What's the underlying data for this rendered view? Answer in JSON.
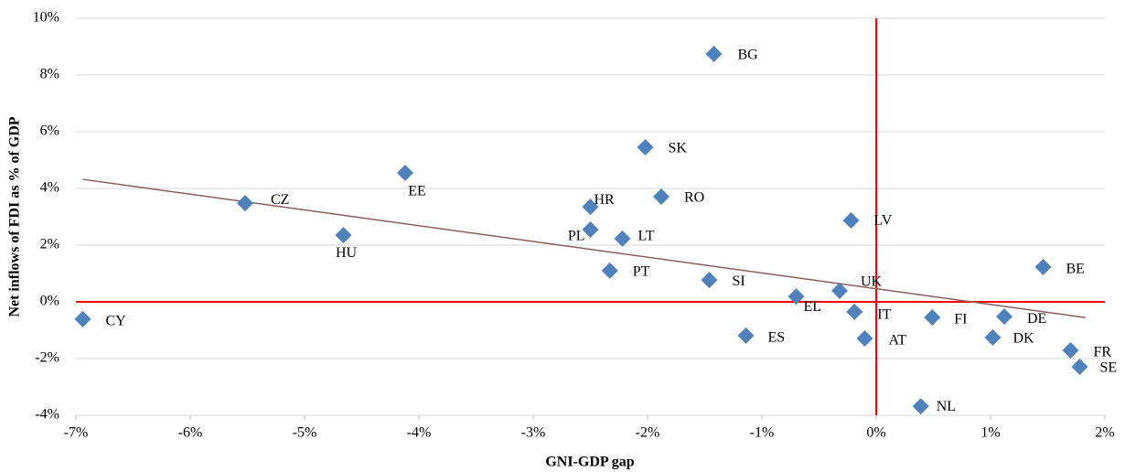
{
  "chart_data": {
    "type": "scatter",
    "x_label": "GNI-GDP gap",
    "y_label": "Net inflows of FDI as % of GDP",
    "point_labels": [
      "CY",
      "CZ",
      "HU",
      "EE",
      "HR",
      "PL",
      "LT",
      "PT",
      "SK",
      "RO",
      "BG",
      "SI",
      "ES",
      "EL",
      "UK",
      "IT",
      "AT",
      "LV",
      "NL",
      "FI",
      "DK",
      "DE",
      "BE",
      "FR",
      "SE"
    ],
    "x": [
      -6.94,
      -5.52,
      -4.66,
      -4.12,
      -2.5,
      -2.5,
      -2.22,
      -2.33,
      -2.02,
      -1.88,
      -1.42,
      -1.46,
      -1.14,
      -0.7,
      -0.32,
      -0.19,
      -0.1,
      -0.22,
      0.39,
      0.49,
      1.02,
      1.12,
      1.46,
      1.7,
      1.78
    ],
    "values": [
      -0.61,
      3.48,
      2.35,
      4.55,
      3.35,
      2.55,
      2.23,
      1.1,
      5.45,
      3.71,
      8.74,
      0.77,
      -1.19,
      0.19,
      0.39,
      -0.35,
      -1.29,
      2.87,
      -3.68,
      -0.55,
      -1.26,
      -0.52,
      1.23,
      -1.71,
      -2.29
    ],
    "color": "#4f81bd",
    "xlim": [
      -7,
      2
    ],
    "ylim": [
      -4,
      10
    ],
    "xticks": [
      {
        "value": -7,
        "label": "-7%"
      },
      {
        "value": -6,
        "label": "-6%"
      },
      {
        "value": -5,
        "label": "-5%"
      },
      {
        "value": -4,
        "label": "-4%"
      },
      {
        "value": -3,
        "label": "-3%"
      },
      {
        "value": -2,
        "label": "-2%"
      },
      {
        "value": -1,
        "label": "-1%"
      },
      {
        "value": 0,
        "label": "0%"
      },
      {
        "value": 1,
        "label": "1%"
      },
      {
        "value": 2,
        "label": "2%"
      }
    ],
    "yticks": [
      {
        "value": -4,
        "label": "-4%"
      },
      {
        "value": -2,
        "label": "-2%"
      },
      {
        "value": 0,
        "label": "0%"
      },
      {
        "value": 2,
        "label": "2%"
      },
      {
        "value": 4,
        "label": "4%"
      },
      {
        "value": 6,
        "label": "6%"
      },
      {
        "value": 8,
        "label": "8%"
      },
      {
        "value": 10,
        "label": "10%"
      }
    ],
    "grid": true,
    "origin_lines": true,
    "origin_line_color": "#ff0000",
    "trendline": true,
    "trendline_color": "#8b5e5e"
  }
}
